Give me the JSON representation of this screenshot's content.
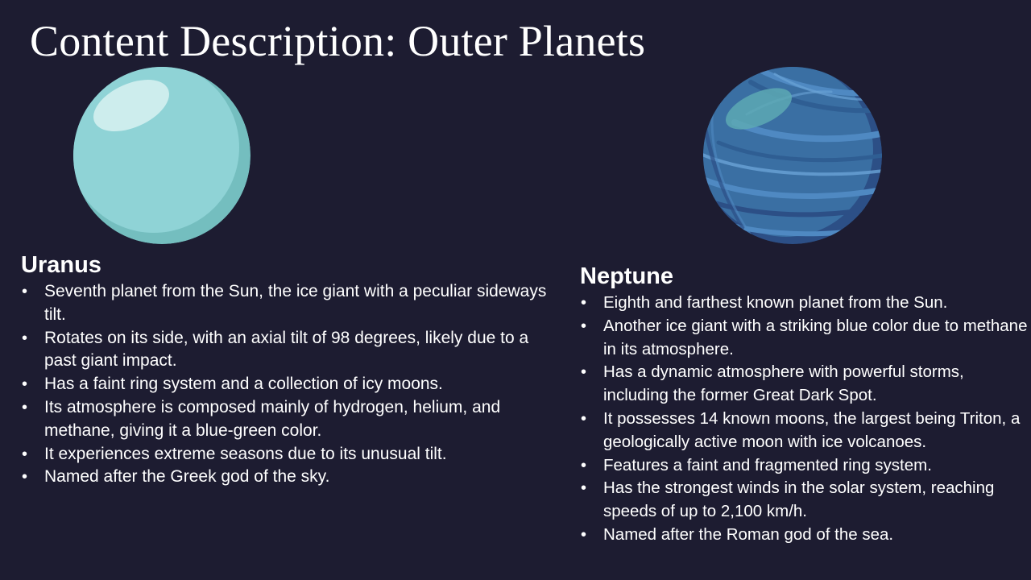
{
  "slide": {
    "title": "Content Description: Outer Planets",
    "background_color": "#1d1c31"
  },
  "uranus": {
    "heading": "Uranus",
    "art_icon": "uranus-planet-illustration",
    "colors": {
      "body": "#8fd3d6",
      "shade": "#74bebf",
      "highlight": "#d4efef"
    },
    "facts": [
      "Seventh planet from the Sun, the ice giant with a peculiar sideways tilt.",
      "Rotates on its side, with an axial tilt of 98 degrees, likely due to a past giant impact.",
      "Has a faint ring system and a collection of icy moons.",
      "Its atmosphere is composed mainly of hydrogen, helium, and methane, giving it a blue-green color.",
      "It experiences extreme seasons due to its unusual tilt.",
      "Named after the Greek god of the sky."
    ]
  },
  "neptune": {
    "heading": "Neptune",
    "art_icon": "neptune-planet-illustration",
    "colors": {
      "body": "#3a6fa3",
      "band_light": "#4f89c2",
      "band_dark": "#2c4f86",
      "highlight": "#5da9b4"
    },
    "facts": [
      "Eighth and farthest known planet from the Sun.",
      "Another ice giant with a striking blue color due to methane in its atmosphere.",
      "Has a dynamic atmosphere with powerful storms, including the former Great Dark Spot.",
      "It possesses 14 known moons, the largest being Triton, a geologically active moon with ice volcanoes.",
      "Features a faint and fragmented ring system.",
      "Has the strongest winds in the solar system, reaching speeds of up to 2,100 km/h.",
      "Named after the Roman god of the sea."
    ]
  }
}
